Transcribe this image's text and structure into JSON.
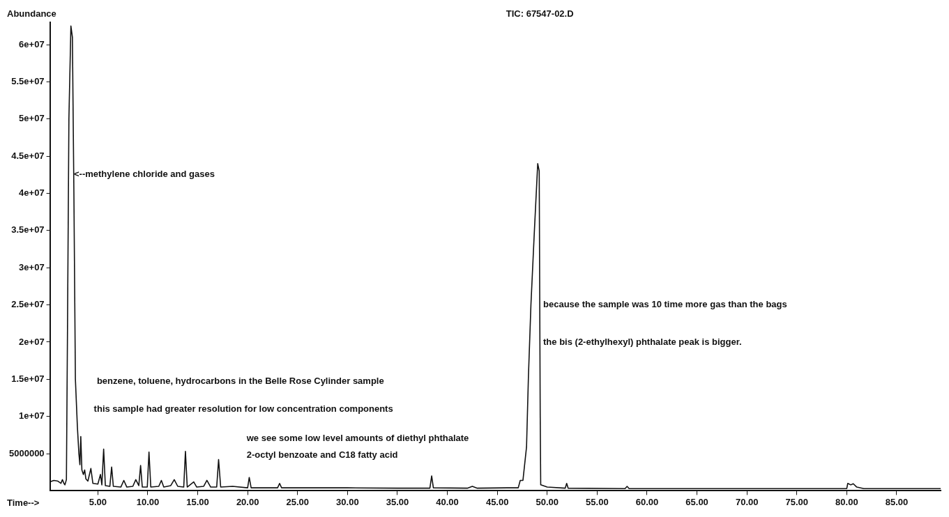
{
  "chart_data": {
    "type": "line",
    "title": "TIC: 67547-02.D",
    "xlabel": "Time-->",
    "ylabel": "Abundance",
    "xlim": [
      0.2,
      89.4
    ],
    "xticks": [
      {
        "value": 5,
        "label": "5.00"
      },
      {
        "value": 10,
        "label": "10.00"
      },
      {
        "value": 15,
        "label": "15.00"
      },
      {
        "value": 20,
        "label": "20.00"
      },
      {
        "value": 25,
        "label": "25.00"
      },
      {
        "value": 30,
        "label": "30.00"
      },
      {
        "value": 35,
        "label": "35.00"
      },
      {
        "value": 40,
        "label": "40.00"
      },
      {
        "value": 45,
        "label": "45.00"
      },
      {
        "value": 50,
        "label": "50.00"
      },
      {
        "value": 55,
        "label": "55.00"
      },
      {
        "value": 60,
        "label": "60.00"
      },
      {
        "value": 65,
        "label": "65.00"
      },
      {
        "value": 70,
        "label": "70.00"
      },
      {
        "value": 75,
        "label": "75.00"
      },
      {
        "value": 80,
        "label": "80.00"
      },
      {
        "value": 85,
        "label": "85.00"
      }
    ],
    "ylim": [
      0,
      63000000
    ],
    "yticks": [
      5000000,
      {
        "value": 10000000,
        "label": "1e+07"
      },
      {
        "value": 15000000,
        "label": "1.5e+07"
      },
      {
        "value": 20000000,
        "label": "2e+07"
      },
      {
        "value": 25000000,
        "label": "2.5e+07"
      },
      {
        "value": 30000000,
        "label": "3e+07"
      },
      {
        "value": 35000000,
        "label": "3.5e+07"
      },
      {
        "value": 40000000,
        "label": "4e+07"
      },
      {
        "value": 45000000,
        "label": "4.5e+07"
      },
      {
        "value": 50000000,
        "label": "5e+07"
      },
      {
        "value": 55000000,
        "label": "5.5e+07"
      },
      {
        "value": 60000000,
        "label": "6e+07"
      }
    ],
    "grid": false,
    "legend": false,
    "marker": "none",
    "line_style": "solid",
    "annotations": [
      {
        "text": "<--methylene chloride and gases",
        "x": 2.6,
        "y": 42500000
      },
      "benzene, toluene, hydrocarbons in the Belle Rose Cylinder sample",
      "this sample had greater resolution for low concentration components",
      "we see some low level amounts of diethyl phthalate",
      "2-octyl benzoate and C18 fatty acid",
      "because the sample was 10 time more gas than the bags",
      "the bis (2-ethylhexyl) phthalate peak is bigger."
    ],
    "series": [
      {
        "color": "#111111",
        "x": [
          0.2,
          0.6,
          1.0,
          1.3,
          1.45,
          1.6,
          1.7,
          1.85,
          1.95,
          2.1,
          2.3,
          2.45,
          2.6,
          2.75,
          2.95,
          3.1,
          3.2,
          3.29,
          3.4,
          3.55,
          3.68,
          3.8,
          4.0,
          4.3,
          4.5,
          5.0,
          5.26,
          5.4,
          5.58,
          5.75,
          6.2,
          6.38,
          6.55,
          7.3,
          7.6,
          7.9,
          8.5,
          8.8,
          9.1,
          9.28,
          9.45,
          9.95,
          10.12,
          10.3,
          11.1,
          11.36,
          11.6,
          12.3,
          12.65,
          13.0,
          13.6,
          13.77,
          13.95,
          14.6,
          14.9,
          15.6,
          15.92,
          16.3,
          16.9,
          17.09,
          17.3,
          18.5,
          20.0,
          20.16,
          20.35,
          23.0,
          23.2,
          23.4,
          30.0,
          35.0,
          38.25,
          38.43,
          38.6,
          42.0,
          42.5,
          43.0,
          46.0,
          47.1,
          47.3,
          47.57,
          47.93,
          48.12,
          48.37,
          48.7,
          49.05,
          49.2,
          49.3,
          49.35,
          50.0,
          51.8,
          51.95,
          52.1,
          57.8,
          58.0,
          58.2,
          70.0,
          80.0,
          80.1,
          80.4,
          80.65,
          81.0,
          81.7,
          89.4
        ],
        "values": [
          1200000,
          1400000,
          1300000,
          1000000,
          1500000,
          1000000,
          800000,
          1500000,
          20000000,
          50000000,
          62500000,
          61000000,
          40000000,
          15000000,
          8600000,
          5000000,
          3500000,
          7300000,
          2800000,
          2200000,
          2800000,
          1600000,
          1300000,
          3000000,
          1000000,
          900000,
          2200000,
          800000,
          5600000,
          700000,
          600000,
          3200000,
          600000,
          500000,
          1400000,
          500000,
          600000,
          1500000,
          700000,
          3400000,
          500000,
          500000,
          5200000,
          500000,
          600000,
          1400000,
          500000,
          700000,
          1500000,
          600000,
          500000,
          5300000,
          500000,
          1200000,
          500000,
          600000,
          1400000,
          500000,
          500000,
          4200000,
          500000,
          600000,
          400000,
          1800000,
          400000,
          400000,
          1000000,
          400000,
          400000,
          350000,
          350000,
          2000000,
          400000,
          350000,
          600000,
          350000,
          400000,
          400000,
          1400000,
          1400000,
          5900000,
          15400000,
          25000000,
          34500000,
          44000000,
          43000000,
          10000000,
          800000,
          500000,
          350000,
          1000000,
          350000,
          300000,
          600000,
          300000,
          300000,
          300000,
          1000000,
          800000,
          950000,
          500000,
          300000,
          300000
        ]
      }
    ]
  }
}
